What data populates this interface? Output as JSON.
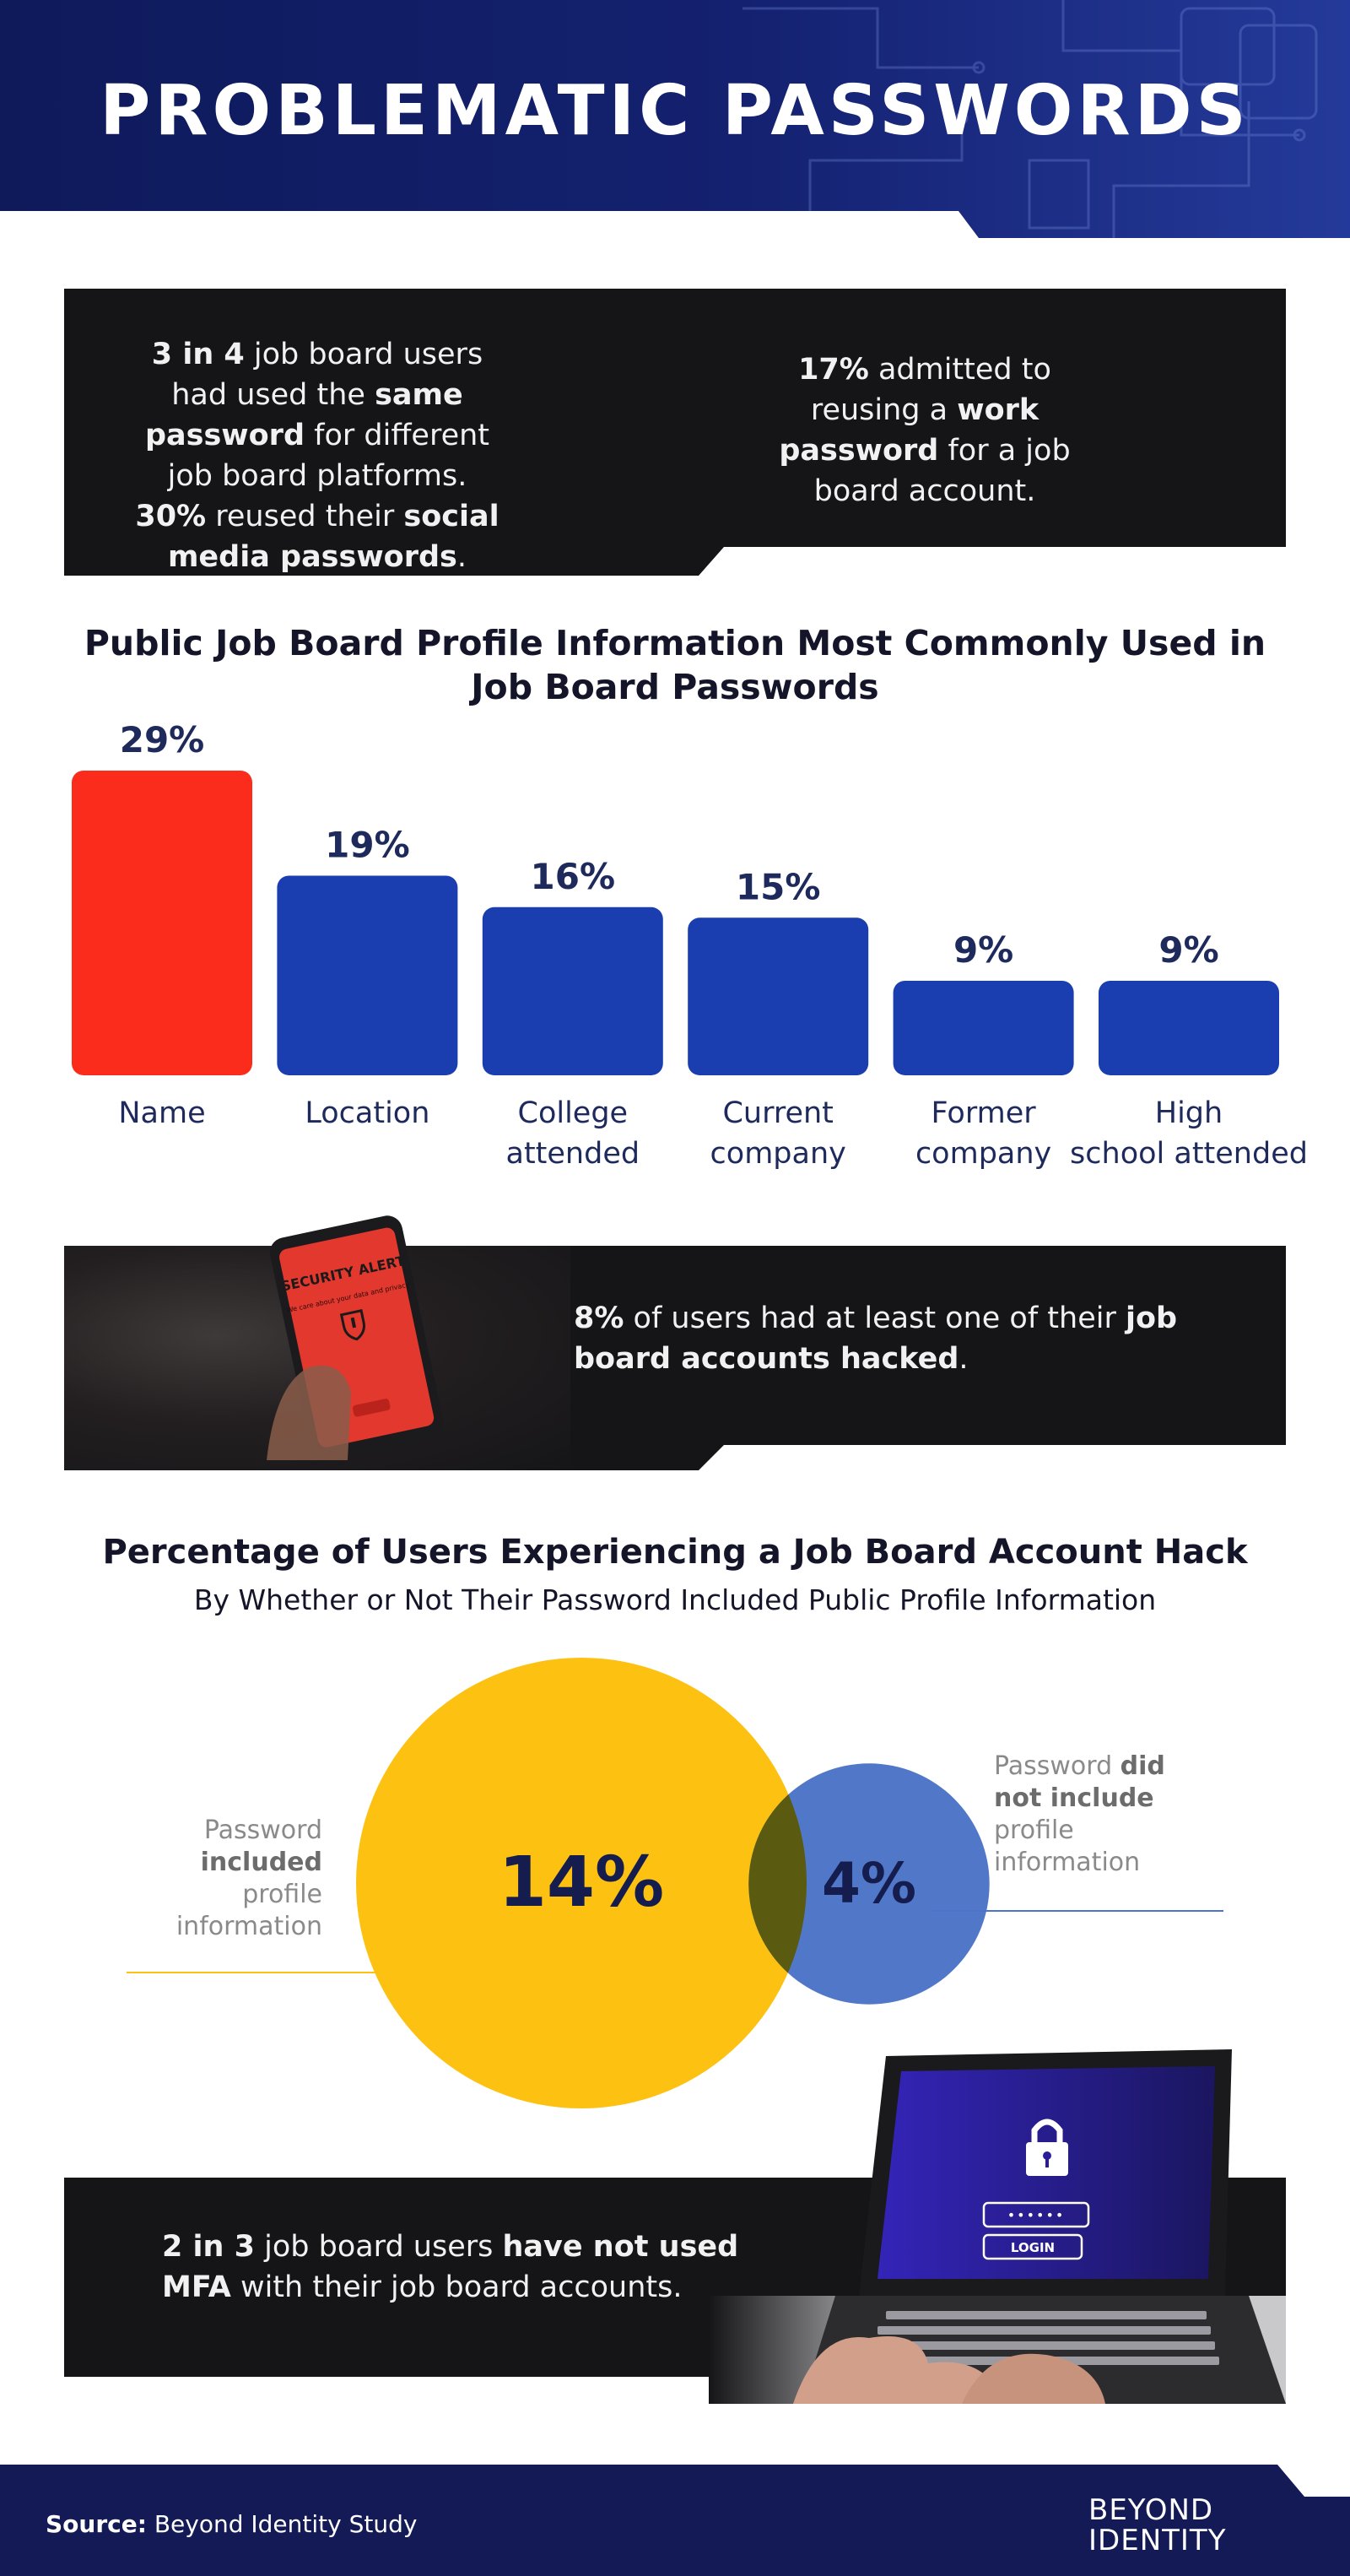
{
  "header": {
    "title": "PROBLEMATIC PASSWORDS"
  },
  "stat1": {
    "left_html": "<b>3 in 4</b> job board users had used the <b>same password</b> for different job board platforms. <b>30%</b> reused their <b>social media passwords</b>.",
    "right_html": "<b>17%</b> admitted to reusing a <b>work password</b> for a job board account."
  },
  "chart_data": [
    {
      "type": "bar",
      "title": "Public Job Board Profile Information Most Commonly Used in Job Board Passwords",
      "categories": [
        "Name",
        "Location",
        "College attended",
        "Current company",
        "Former company",
        "High school attended"
      ],
      "values": [
        29,
        19,
        16,
        15,
        9,
        9
      ],
      "value_labels": [
        "29%",
        "19%",
        "16%",
        "15%",
        "9%",
        "9%"
      ],
      "unit": "%",
      "colors": [
        "#fc2c1c",
        "#1a3eb0",
        "#1a3eb0",
        "#1a3eb0",
        "#1a3eb0",
        "#1a3eb0"
      ],
      "grid": false
    },
    {
      "type": "bubble",
      "title": "Percentage of Users Experiencing a Job Board Account Hack",
      "subtitle": "By Whether or Not Their Password Included Public Profile Information",
      "series": [
        {
          "name": "Password included profile information",
          "value": 14,
          "label": "14%",
          "color": "#fdc112"
        },
        {
          "name": "Password did not include profile information",
          "value": 4,
          "label": "4%",
          "color": "#4b73c7"
        }
      ]
    }
  ],
  "stat2": {
    "text_html": "<b>8%</b> of users had at least one of their <b>job board accounts hacked</b>.",
    "phone": {
      "alert_title": "SECURITY ALERT",
      "alert_body": "We care about your data and privacy",
      "icon": "shield-alert-icon"
    }
  },
  "circle_labels": {
    "left_html": "Password <b>included</b> profile information",
    "right_html": "Password <b>did not include</b> profile information"
  },
  "stat3": {
    "text_html": "<b>2 in 3</b> job board users <b>have not used MFA</b> with their job board accounts.",
    "laptop": {
      "password_mask": "••••••",
      "button": "LOGIN",
      "icon": "padlock-icon"
    }
  },
  "footer": {
    "source_label": "Source:",
    "source_text": "Beyond Identity Study",
    "logo_line1": "BEYOND",
    "logo_line2": "IDENTITY"
  },
  "colors": {
    "navy": "#131a55",
    "panel": "#151518",
    "red": "#fc2c1c",
    "blue": "#1a3eb0",
    "yellow": "#fdc112",
    "lightblue": "#4b73c7"
  }
}
